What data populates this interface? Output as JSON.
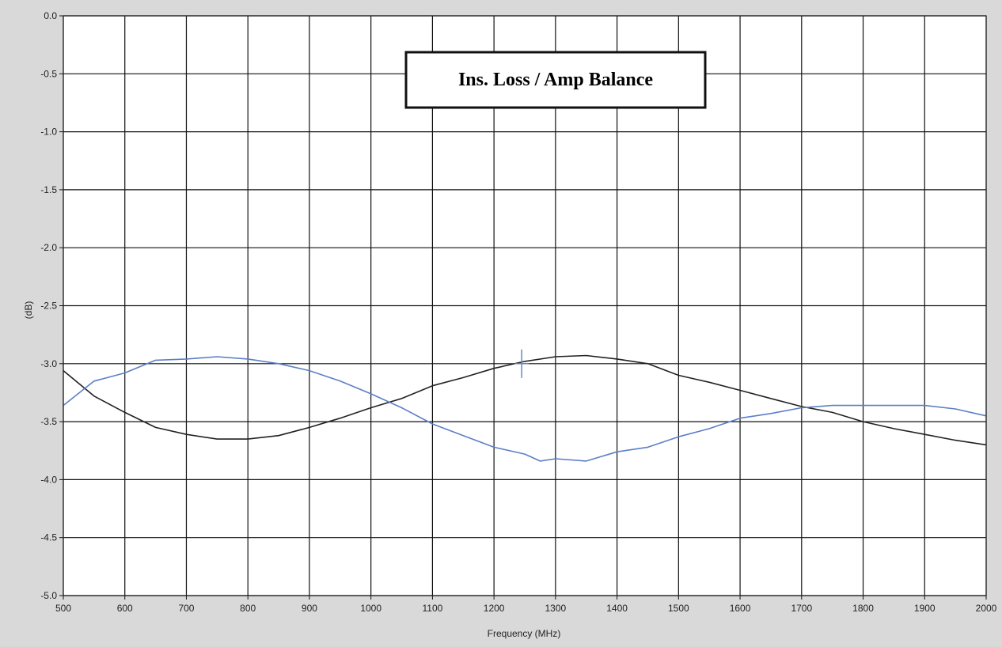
{
  "chart_data": {
    "type": "line",
    "title": "Ins. Loss / Amp Balance",
    "xlabel": "Frequency (MHz)",
    "ylabel": "(dB)",
    "xlim": [
      500,
      2000
    ],
    "ylim": [
      -5.0,
      0.0
    ],
    "x_ticks": [
      "500",
      "600",
      "700",
      "800",
      "900",
      "1000",
      "1100",
      "1200",
      "1300",
      "1400",
      "1500",
      "1600",
      "1700",
      "1800",
      "1900",
      "2000"
    ],
    "y_ticks": [
      "0.0",
      "-0.5",
      "-1.0",
      "-1.5",
      "-2.0",
      "-2.5",
      "-3.0",
      "-3.5",
      "-4.0",
      "-4.5",
      "-5.0"
    ],
    "grid": true,
    "series": [
      {
        "color": "#222222",
        "points": [
          [
            500,
            -3.06
          ],
          [
            550,
            -3.28
          ],
          [
            600,
            -3.42
          ],
          [
            650,
            -3.55
          ],
          [
            700,
            -3.61
          ],
          [
            750,
            -3.65
          ],
          [
            800,
            -3.65
          ],
          [
            850,
            -3.62
          ],
          [
            900,
            -3.55
          ],
          [
            950,
            -3.47
          ],
          [
            1000,
            -3.38
          ],
          [
            1050,
            -3.3
          ],
          [
            1100,
            -3.19
          ],
          [
            1150,
            -3.12
          ],
          [
            1200,
            -3.04
          ],
          [
            1250,
            -2.98
          ],
          [
            1300,
            -2.94
          ],
          [
            1350,
            -2.93
          ],
          [
            1400,
            -2.96
          ],
          [
            1450,
            -3.0
          ],
          [
            1500,
            -3.1
          ],
          [
            1550,
            -3.16
          ],
          [
            1600,
            -3.23
          ],
          [
            1650,
            -3.3
          ],
          [
            1700,
            -3.37
          ],
          [
            1750,
            -3.42
          ],
          [
            1800,
            -3.5
          ],
          [
            1850,
            -3.56
          ],
          [
            1900,
            -3.61
          ],
          [
            1950,
            -3.66
          ],
          [
            2000,
            -3.7
          ]
        ]
      },
      {
        "color": "#5b7fc7",
        "points": [
          [
            500,
            -3.36
          ],
          [
            550,
            -3.15
          ],
          [
            600,
            -3.08
          ],
          [
            650,
            -2.97
          ],
          [
            700,
            -2.96
          ],
          [
            750,
            -2.94
          ],
          [
            800,
            -2.96
          ],
          [
            850,
            -3.0
          ],
          [
            900,
            -3.06
          ],
          [
            950,
            -3.15
          ],
          [
            1000,
            -3.26
          ],
          [
            1050,
            -3.38
          ],
          [
            1100,
            -3.52
          ],
          [
            1150,
            -3.62
          ],
          [
            1200,
            -3.72
          ],
          [
            1250,
            -3.78
          ],
          [
            1275,
            -3.84
          ],
          [
            1300,
            -3.82
          ],
          [
            1350,
            -3.84
          ],
          [
            1400,
            -3.76
          ],
          [
            1450,
            -3.72
          ],
          [
            1500,
            -3.63
          ],
          [
            1550,
            -3.56
          ],
          [
            1600,
            -3.47
          ],
          [
            1650,
            -3.43
          ],
          [
            1700,
            -3.38
          ],
          [
            1750,
            -3.36
          ],
          [
            1800,
            -3.36
          ],
          [
            1850,
            -3.36
          ],
          [
            1900,
            -3.36
          ],
          [
            1950,
            -3.39
          ],
          [
            2000,
            -3.45
          ]
        ]
      }
    ],
    "marker": {
      "x": 1245,
      "y": -3.0,
      "color": "#5b7fc7"
    }
  }
}
